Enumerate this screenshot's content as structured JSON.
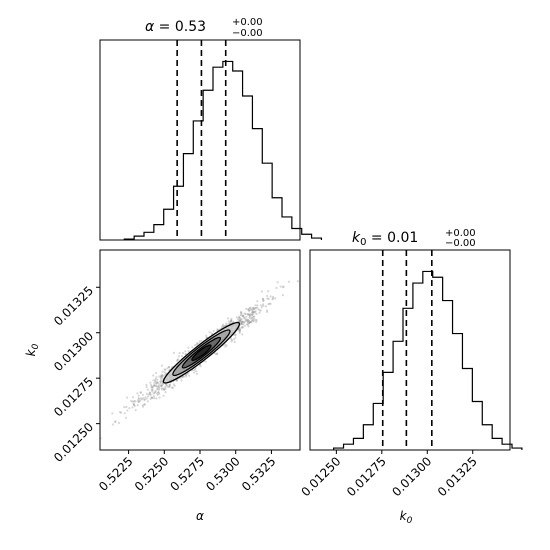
{
  "chart_data": [
    {
      "type": "bar",
      "panel": "alpha-histogram",
      "title": {
        "var": "α",
        "eq": " = 0.53",
        "up": "+0.00",
        "down": "−0.00"
      },
      "xlim": [
        0.5205,
        0.5345
      ],
      "bin_edges_start": 0.5222,
      "bin_width": 0.00069,
      "counts": [
        0.5,
        2,
        4,
        8,
        16,
        28,
        45,
        62,
        78,
        90,
        93,
        88,
        75,
        58,
        40,
        22,
        12,
        6,
        3,
        1
      ],
      "quantiles": [
        0.5259,
        0.5276,
        0.5293
      ]
    },
    {
      "type": "scatter",
      "panel": "alpha-k0-2d",
      "xlabel": "α",
      "ylabel": "k",
      "ylabel_sub": "0",
      "xlim": [
        0.5205,
        0.5345
      ],
      "ylim": [
        0.012355,
        0.013455
      ],
      "xticks": [
        "0.5225",
        "0.5250",
        "0.5275",
        "0.5300",
        "0.5325"
      ],
      "xtick_values": [
        0.5225,
        0.525,
        0.5275,
        0.53,
        0.5325
      ],
      "yticks": [
        "0.01250",
        "0.01275",
        "0.01300",
        "0.01325"
      ],
      "ytick_values": [
        0.0125,
        0.01275,
        0.013,
        0.01325
      ],
      "center": [
        0.5276,
        0.01289
      ]
    },
    {
      "type": "bar",
      "panel": "k0-histogram",
      "title": {
        "var": "k",
        "sub": "0",
        "eq": " = 0.01",
        "up": "+0.00",
        "down": "−0.00"
      },
      "xlabel": "k",
      "xlabel_sub": "0",
      "xlim": [
        0.012355,
        0.013455
      ],
      "xticks": [
        "0.01250",
        "0.01275",
        "0.01300",
        "0.01325"
      ],
      "xtick_values": [
        0.0125,
        0.01275,
        0.013,
        0.01325
      ],
      "bin_edges_start": 0.012485,
      "bin_width": 5.45e-05,
      "counts": [
        1,
        3,
        6,
        13,
        24,
        40,
        56,
        73,
        86,
        92,
        89,
        77,
        60,
        42,
        25,
        13,
        6,
        3,
        1
      ],
      "quantiles": [
        0.012755,
        0.012885,
        0.013025
      ]
    }
  ]
}
